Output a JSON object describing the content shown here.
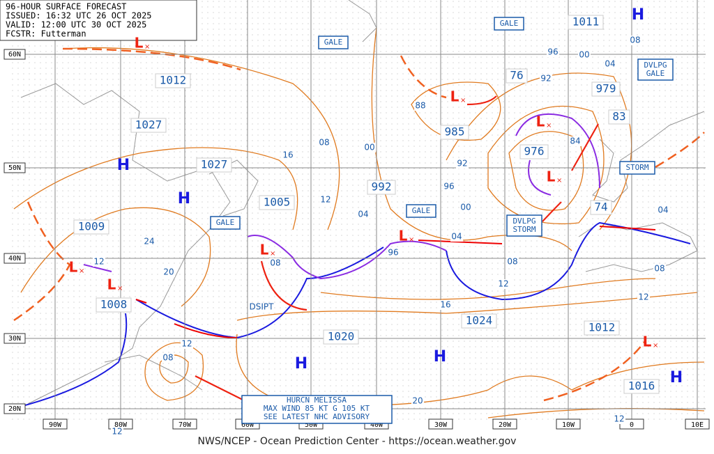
{
  "header": [
    "96-HOUR SURFACE FORECAST",
    "ISSUED: 16:32 UTC 26 OCT 2025",
    "VALID: 12:00 UTC 30 OCT 2025",
    "FCSTR: Futterman"
  ],
  "latitudes": [
    "60N",
    "50N",
    "40N",
    "30N",
    "20N"
  ],
  "longitudes": [
    "90W",
    "80W",
    "70W",
    "60W",
    "50W",
    "40W",
    "30W",
    "20W",
    "10W",
    "0",
    "10E"
  ],
  "pressure_labels": [
    "1012",
    "1027",
    "1027",
    "1005",
    "1009",
    "1008",
    "1020",
    "1024",
    "1012",
    "1016",
    "992",
    "985",
    "976",
    "979",
    "83",
    "74",
    "76",
    "1011"
  ],
  "isobar_labels": [
    "16",
    "08",
    "00",
    "12",
    "04",
    "24",
    "20",
    "12",
    "08",
    "96",
    "04",
    "00",
    "96",
    "92",
    "88",
    "96",
    "92",
    "00",
    "04",
    "08",
    "84",
    "04",
    "08",
    "12",
    "08",
    "12",
    "16",
    "12",
    "08",
    "20",
    "12",
    "12"
  ],
  "warning_boxes": [
    [
      "GALE"
    ],
    [
      "GALE"
    ],
    [
      "DVLPG",
      "GALE"
    ],
    [
      "STORM"
    ],
    [
      "GALE"
    ],
    [
      "GALE"
    ],
    [
      "DVLPG",
      "STORM"
    ]
  ],
  "highs": [
    "H",
    "H",
    "H",
    "H",
    "H",
    "H"
  ],
  "lows": [
    "L",
    "L",
    "L",
    "L",
    "L",
    "L",
    "L",
    "L",
    "L"
  ],
  "annotation": "DSIPT",
  "hurricane_box": [
    "HURCN MELISSA",
    "MAX WIND 85 KT G 105 KT",
    "SEE LATEST NHC ADVISORY"
  ],
  "footer": "NWS/NCEP - Ocean Prediction Center - https://ocean.weather.gov"
}
